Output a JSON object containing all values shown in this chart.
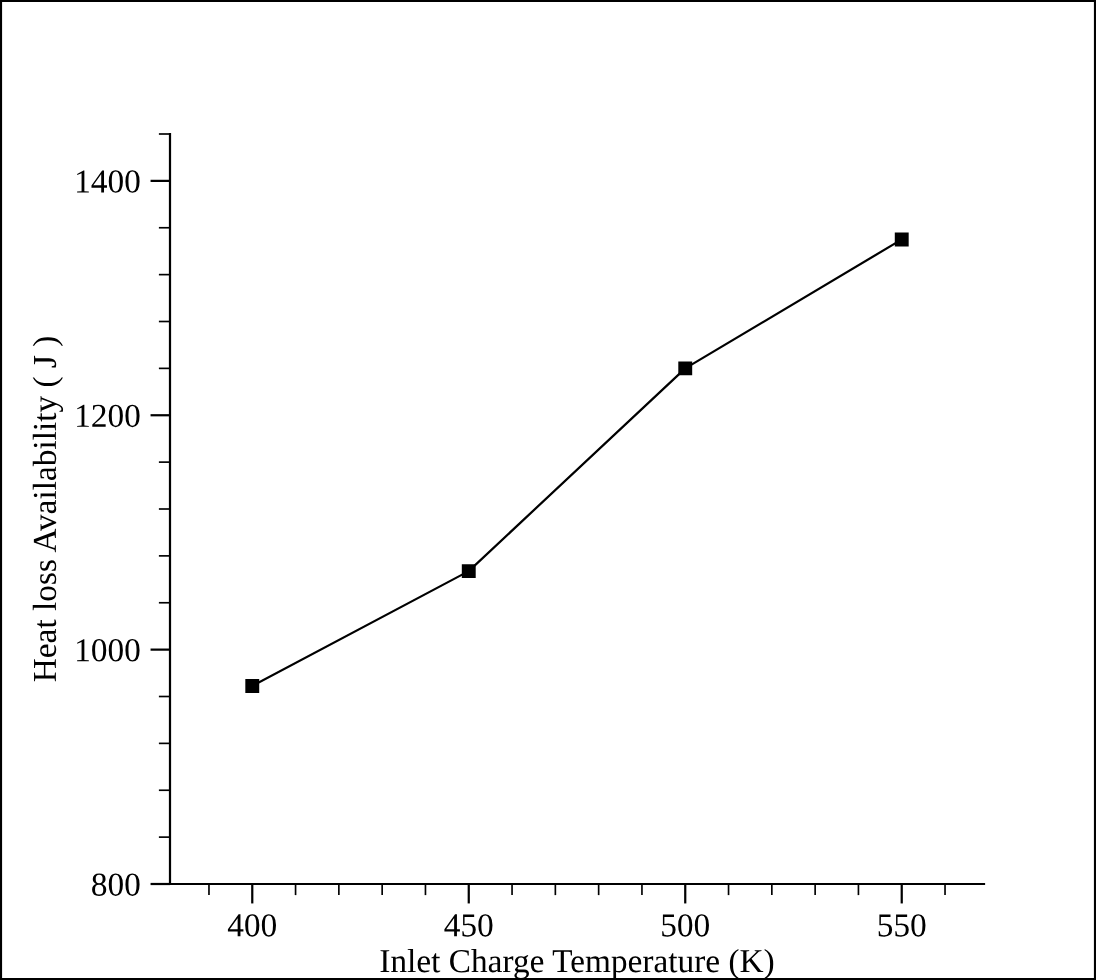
{
  "chart_data": {
    "type": "line",
    "xlabel": "Inlet Charge Temperature (K)",
    "ylabel": "Heat loss Availability ( J )",
    "x": [
      400,
      450,
      500,
      550
    ],
    "series": [
      {
        "color": "#000000",
        "values": [
          969,
          1067,
          1240,
          1350
        ]
      }
    ],
    "xlim": [
      381,
      569
    ],
    "ylim": [
      800,
      1440
    ],
    "xticks": [
      400,
      450,
      500,
      550
    ],
    "yticks": [
      800,
      1000,
      1200,
      1400
    ],
    "marker": "square",
    "line_style": "solid",
    "grid": false,
    "legend": false
  }
}
